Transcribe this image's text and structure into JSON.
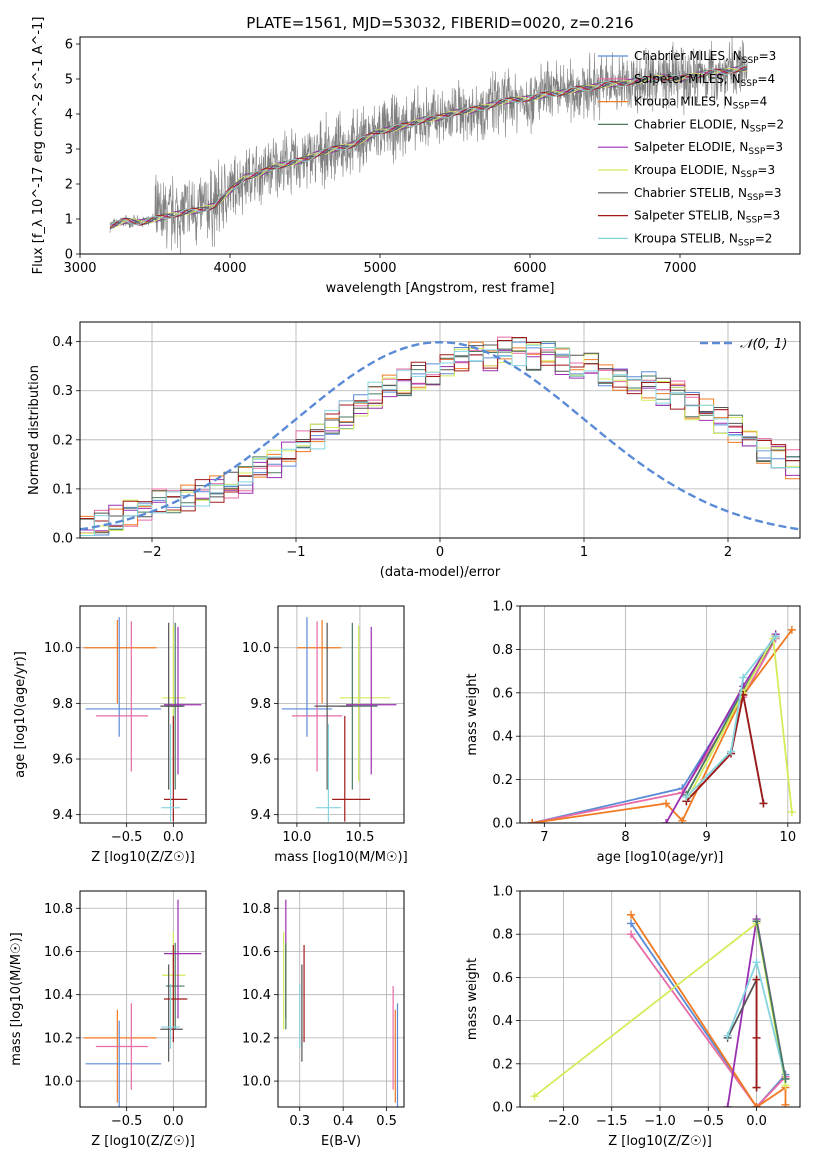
{
  "figure": {
    "title": "PLATE=1561, MJD=53032, FIBERID=0020, z=0.216"
  },
  "colors": {
    "Chabrier MILES": "#5b8bd6",
    "Salpeter MILES": "#e86aa6",
    "Kroupa MILES": "#f07a22",
    "Chabrier ELODIE": "#4a7a60",
    "Salpeter ELODIE": "#9a30b0",
    "Kroupa ELODIE": "#d4ec5a",
    "Chabrier STELIB": "#555555",
    "Salpeter STELIB": "#a01a1a",
    "Kroupa STELIB": "#86d4e0",
    "data": "#808080",
    "normal": "#5b8bd6"
  },
  "legend_spectrum": [
    "Chabrier MILES, N_SSP=3",
    "Salpeter MILES, N_SSP=4",
    "Kroupa MILES, N_SSP=4",
    "Chabrier ELODIE, N_SSP=2",
    "Salpeter ELODIE, N_SSP=3",
    "Kroupa ELODIE, N_SSP=3",
    "Chabrier STELIB, N_SSP=3",
    "Salpeter STELIB, N_SSP=3",
    "Kroupa STELIB, N_SSP=2"
  ],
  "legend_hist": "𝒩(0, 1)",
  "chart_data": [
    {
      "id": "spectrum",
      "type": "line",
      "xlabel": "wavelength [Angstrom, rest frame]",
      "ylabel": "Flux [f_λ 10^-17 erg cm^-2 s^-1 A^-1]",
      "xlim": [
        3000,
        7800
      ],
      "ylim": [
        0,
        6.2
      ],
      "xticks": [
        "3000",
        "4000",
        "5000",
        "6000",
        "7000"
      ],
      "yticks": [
        "0",
        "1",
        "2",
        "3",
        "4",
        "5",
        "6"
      ],
      "data_range": [
        3200,
        7450
      ],
      "model_curve": {
        "x": [
          3200,
          3300,
          3400,
          3500,
          3600,
          3700,
          3800,
          3900,
          4000,
          4100,
          4200,
          4300,
          4400,
          4500,
          4600,
          4700,
          4800,
          4900,
          5000,
          5100,
          5200,
          5300,
          5400,
          5500,
          5600,
          5700,
          5800,
          5900,
          6000,
          6100,
          6200,
          6300,
          6400,
          6500,
          6600,
          6700,
          6800,
          6900,
          7000,
          7100,
          7200,
          7300,
          7400
        ],
        "y": [
          0.8,
          0.95,
          0.9,
          1.0,
          1.1,
          1.2,
          1.25,
          1.4,
          1.8,
          2.2,
          2.3,
          2.5,
          2.6,
          2.7,
          2.9,
          3.0,
          3.1,
          3.3,
          3.5,
          3.6,
          3.7,
          3.85,
          3.9,
          4.05,
          4.1,
          4.2,
          4.35,
          4.4,
          4.45,
          4.55,
          4.6,
          4.7,
          4.75,
          4.85,
          4.85,
          4.95,
          5.0,
          5.05,
          5.0,
          5.1,
          5.2,
          5.2,
          5.3
        ]
      }
    },
    {
      "id": "residual-hist",
      "type": "line",
      "xlabel": "(data-model)/error",
      "ylabel": "Normed distribution",
      "xlim": [
        -2.5,
        2.5
      ],
      "ylim": [
        0,
        0.44
      ],
      "xticks": [
        "−2",
        "−1",
        "0",
        "1",
        "2"
      ],
      "yticks": [
        "0.0",
        "0.1",
        "0.2",
        "0.3",
        "0.4"
      ],
      "bin_width": 0.1,
      "hist_envelope": [
        0.02,
        0.03,
        0.04,
        0.05,
        0.06,
        0.07,
        0.07,
        0.08,
        0.09,
        0.1,
        0.11,
        0.12,
        0.14,
        0.15,
        0.17,
        0.19,
        0.21,
        0.23,
        0.25,
        0.27,
        0.29,
        0.31,
        0.32,
        0.33,
        0.34,
        0.35,
        0.36,
        0.37,
        0.37,
        0.38,
        0.38,
        0.37,
        0.37,
        0.36,
        0.35,
        0.35,
        0.34,
        0.33,
        0.32,
        0.31,
        0.3,
        0.29,
        0.27,
        0.26,
        0.24,
        0.22,
        0.2,
        0.18,
        0.17,
        0.15
      ]
    },
    {
      "id": "age-vs-Z",
      "type": "scatter",
      "xlabel": "Z [log10(Z/Z☉)]",
      "ylabel": "age  [log10(age/yr)]",
      "xlim": [
        -1.0,
        0.35
      ],
      "ylim": [
        9.37,
        10.15
      ],
      "xticks": [
        "−0.5",
        "0.0"
      ],
      "yticks": [
        "9.4",
        "9.6",
        "9.8",
        "10.0"
      ],
      "points": [
        {
          "model": "Kroupa MILES",
          "x": -0.6,
          "xerr": [
            0.36,
            0.42
          ],
          "y": 10.0,
          "yerr": [
            0.2,
            0.1
          ]
        },
        {
          "model": "Chabrier MILES",
          "x": -0.58,
          "xerr": [
            0.36,
            0.45
          ],
          "y": 9.78,
          "yerr": [
            0.1,
            0.33
          ]
        },
        {
          "model": "Salpeter MILES",
          "x": -0.45,
          "xerr": [
            0.38,
            0.18
          ],
          "y": 9.755,
          "yerr": [
            0.2,
            0.34
          ]
        },
        {
          "model": "Kroupa ELODIE",
          "x": 0.0,
          "xerr": [
            0.12,
            0.13
          ],
          "y": 9.82,
          "yerr": [
            0.3,
            0.26
          ]
        },
        {
          "model": "Chabrier ELODIE",
          "x": 0.02,
          "xerr": [
            0.1,
            0.1
          ],
          "y": 9.79,
          "yerr": [
            0.3,
            0.3
          ]
        },
        {
          "model": "Salpeter ELODIE",
          "x": 0.05,
          "xerr": [
            0.15,
            0.25
          ],
          "y": 9.795,
          "yerr": [
            0.25,
            0.28
          ]
        },
        {
          "model": "Chabrier STELIB",
          "x": -0.05,
          "xerr": [
            0.09,
            0.15
          ],
          "y": 9.79,
          "yerr": [
            0.3,
            0.3
          ]
        },
        {
          "model": "Salpeter STELIB",
          "x": 0.0,
          "xerr": [
            0.1,
            0.15
          ],
          "y": 9.455,
          "yerr": [
            0.08,
            0.3
          ]
        },
        {
          "model": "Kroupa STELIB",
          "x": -0.03,
          "xerr": [
            0.1,
            0.1
          ],
          "y": 9.425,
          "yerr": [
            0.05,
            0.3
          ]
        }
      ]
    },
    {
      "id": "age-vs-mass",
      "type": "scatter",
      "xlabel": "mass [log10(M/M☉)]",
      "ylabel": "",
      "xlim": [
        9.85,
        10.85
      ],
      "ylim": [
        9.37,
        10.15
      ],
      "xticks": [
        "10.0",
        "10.5"
      ],
      "yticks": [
        "9.4",
        "9.6",
        "9.8",
        "10.0"
      ],
      "points": [
        {
          "model": "Kroupa MILES",
          "x": 10.2,
          "xerr": [
            0.2,
            0.15
          ],
          "y": 10.0,
          "yerr": [
            0.2,
            0.1
          ]
        },
        {
          "model": "Chabrier MILES",
          "x": 10.08,
          "xerr": [
            0.2,
            0.2
          ],
          "y": 9.78,
          "yerr": [
            0.1,
            0.33
          ]
        },
        {
          "model": "Salpeter MILES",
          "x": 10.16,
          "xerr": [
            0.2,
            0.2
          ],
          "y": 9.755,
          "yerr": [
            0.2,
            0.34
          ]
        },
        {
          "model": "Kroupa ELODIE",
          "x": 10.49,
          "xerr": [
            0.15,
            0.25
          ],
          "y": 9.82,
          "yerr": [
            0.3,
            0.26
          ]
        },
        {
          "model": "Chabrier ELODIE",
          "x": 10.44,
          "xerr": [
            0.1,
            0.2
          ],
          "y": 9.79,
          "yerr": [
            0.3,
            0.3
          ]
        },
        {
          "model": "Salpeter ELODIE",
          "x": 10.59,
          "xerr": [
            0.2,
            0.2
          ],
          "y": 9.795,
          "yerr": [
            0.25,
            0.28
          ]
        },
        {
          "model": "Chabrier STELIB",
          "x": 10.24,
          "xerr": [
            0.1,
            0.2
          ],
          "y": 9.79,
          "yerr": [
            0.3,
            0.3
          ]
        },
        {
          "model": "Salpeter STELIB",
          "x": 10.38,
          "xerr": [
            0.1,
            0.2
          ],
          "y": 9.455,
          "yerr": [
            0.08,
            0.3
          ]
        },
        {
          "model": "Kroupa STELIB",
          "x": 10.25,
          "xerr": [
            0.1,
            0.1
          ],
          "y": 9.425,
          "yerr": [
            0.05,
            0.3
          ]
        }
      ]
    },
    {
      "id": "massweight-vs-age",
      "type": "line",
      "xlabel": "age  [log10(age/yr)]",
      "ylabel": "mass weight",
      "xlim": [
        6.7,
        10.15
      ],
      "ylim": [
        0,
        1.0
      ],
      "xticks": [
        "7",
        "8",
        "9",
        "10"
      ],
      "yticks": [
        "0.0",
        "0.2",
        "0.4",
        "0.6",
        "0.8",
        "1.0"
      ],
      "series": [
        {
          "model": "Chabrier MILES",
          "x": [
            6.85,
            8.7,
            9.45,
            9.85
          ],
          "y": [
            0.0,
            0.16,
            0.61,
            0.86
          ]
        },
        {
          "model": "Salpeter MILES",
          "x": [
            6.85,
            8.7,
            9.45,
            9.85
          ],
          "y": [
            0.0,
            0.14,
            0.58,
            0.85
          ]
        },
        {
          "model": "Kroupa MILES",
          "x": [
            6.85,
            8.5,
            8.7,
            9.45,
            10.05
          ],
          "y": [
            0.0,
            0.09,
            0.01,
            0.59,
            0.89
          ]
        },
        {
          "model": "Chabrier ELODIE",
          "x": [
            8.75,
            9.45,
            9.85
          ],
          "y": [
            0.13,
            0.61,
            0.86
          ]
        },
        {
          "model": "Salpeter ELODIE",
          "x": [
            8.5,
            9.45,
            9.85
          ],
          "y": [
            0.0,
            0.63,
            0.87
          ]
        },
        {
          "model": "Kroupa ELODIE",
          "x": [
            8.75,
            9.45,
            9.82,
            10.05
          ],
          "y": [
            0.1,
            0.6,
            0.85,
            0.05
          ]
        },
        {
          "model": "Chabrier STELIB",
          "x": [
            8.75,
            9.3,
            9.45,
            9.7
          ],
          "y": [
            0.1,
            0.32,
            0.59,
            0.09
          ]
        },
        {
          "model": "Salpeter STELIB",
          "x": [
            8.75,
            9.3,
            9.45,
            9.7
          ],
          "y": [
            0.1,
            0.32,
            0.59,
            0.09
          ]
        },
        {
          "model": "Kroupa STELIB",
          "x": [
            8.75,
            9.3,
            9.45,
            9.85
          ],
          "y": [
            0.12,
            0.33,
            0.67,
            0.86
          ]
        }
      ]
    },
    {
      "id": "mass-vs-Z",
      "type": "scatter",
      "xlabel": "Z [log10(Z/Z☉)]",
      "ylabel": "mass [log10(M/M☉)]",
      "xlim": [
        -1.0,
        0.35
      ],
      "ylim": [
        9.88,
        10.88
      ],
      "xticks": [
        "−0.5",
        "0.0"
      ],
      "yticks": [
        "10.0",
        "10.2",
        "10.4",
        "10.6",
        "10.8"
      ],
      "points": [
        {
          "model": "Kroupa MILES",
          "x": -0.6,
          "xerr": [
            0.36,
            0.42
          ],
          "y": 10.2,
          "yerr": [
            0.3,
            0.13
          ]
        },
        {
          "model": "Chabrier MILES",
          "x": -0.58,
          "xerr": [
            0.36,
            0.45
          ],
          "y": 10.08,
          "yerr": [
            0.2,
            0.2
          ]
        },
        {
          "model": "Salpeter MILES",
          "x": -0.45,
          "xerr": [
            0.38,
            0.18
          ],
          "y": 10.16,
          "yerr": [
            0.2,
            0.2
          ]
        },
        {
          "model": "Kroupa ELODIE",
          "x": 0.0,
          "xerr": [
            0.12,
            0.13
          ],
          "y": 10.49,
          "yerr": [
            0.25,
            0.2
          ]
        },
        {
          "model": "Chabrier ELODIE",
          "x": 0.02,
          "xerr": [
            0.1,
            0.1
          ],
          "y": 10.44,
          "yerr": [
            0.2,
            0.2
          ]
        },
        {
          "model": "Salpeter ELODIE",
          "x": 0.05,
          "xerr": [
            0.15,
            0.25
          ],
          "y": 10.59,
          "yerr": [
            0.3,
            0.25
          ]
        },
        {
          "model": "Chabrier STELIB",
          "x": -0.05,
          "xerr": [
            0.09,
            0.15
          ],
          "y": 10.24,
          "yerr": [
            0.15,
            0.3
          ]
        },
        {
          "model": "Salpeter STELIB",
          "x": 0.0,
          "xerr": [
            0.1,
            0.15
          ],
          "y": 10.38,
          "yerr": [
            0.2,
            0.25
          ]
        },
        {
          "model": "Kroupa STELIB",
          "x": -0.03,
          "xerr": [
            0.1,
            0.1
          ],
          "y": 10.25,
          "yerr": [
            0.1,
            0.2
          ]
        }
      ]
    },
    {
      "id": "mass-vs-EBV",
      "type": "scatter",
      "xlabel": "E(B-V)",
      "ylabel": "",
      "xlim": [
        0.25,
        0.54
      ],
      "ylim": [
        9.88,
        10.88
      ],
      "xticks": [
        "0.3",
        "0.4",
        "0.5"
      ],
      "yticks": [
        "10.0",
        "10.2",
        "10.4",
        "10.6",
        "10.8"
      ],
      "points": [
        {
          "model": "Kroupa ELODIE",
          "x": 0.263,
          "y": 10.49,
          "yerr": [
            0.25,
            0.2
          ]
        },
        {
          "model": "Salpeter ELODIE",
          "x": 0.268,
          "y": 10.59,
          "yerr": [
            0.3,
            0.25
          ]
        },
        {
          "model": "Chabrier ELODIE",
          "x": 0.268,
          "y": 10.44,
          "yerr": [
            0.2,
            0.2
          ]
        },
        {
          "model": "Kroupa STELIB",
          "x": 0.3,
          "y": 10.25,
          "yerr": [
            0.1,
            0.2
          ]
        },
        {
          "model": "Chabrier STELIB",
          "x": 0.305,
          "y": 10.24,
          "yerr": [
            0.15,
            0.3
          ]
        },
        {
          "model": "Salpeter STELIB",
          "x": 0.31,
          "y": 10.38,
          "yerr": [
            0.2,
            0.25
          ]
        },
        {
          "model": "Salpeter MILES",
          "x": 0.515,
          "y": 10.16,
          "yerr": [
            0.2,
            0.28
          ]
        },
        {
          "model": "Kroupa MILES",
          "x": 0.52,
          "y": 10.2,
          "yerr": [
            0.3,
            0.13
          ]
        },
        {
          "model": "Chabrier MILES",
          "x": 0.525,
          "y": 10.08,
          "yerr": [
            0.2,
            0.28
          ]
        }
      ]
    },
    {
      "id": "massweight-vs-Z",
      "type": "line",
      "xlabel": "Z [log10(Z/Z☉)]",
      "ylabel": "mass weight",
      "xlim": [
        -2.45,
        0.45
      ],
      "ylim": [
        0,
        1.0
      ],
      "xticks": [
        "−2.0",
        "−1.5",
        "−1.0",
        "−0.5",
        "0.0"
      ],
      "yticks": [
        "0.0",
        "0.2",
        "0.4",
        "0.6",
        "0.8",
        "1.0"
      ],
      "series": [
        {
          "model": "Chabrier MILES",
          "x": [
            -1.3,
            0.0,
            0.3
          ],
          "y": [
            0.85,
            0.0,
            0.15
          ]
        },
        {
          "model": "Salpeter MILES",
          "x": [
            -1.3,
            0.0,
            0.3
          ],
          "y": [
            0.8,
            0.0,
            0.14
          ]
        },
        {
          "model": "Kroupa MILES",
          "x": [
            -1.3,
            0.0,
            0.3,
            0.3
          ],
          "y": [
            0.89,
            0.0,
            0.09,
            0.01
          ]
        },
        {
          "model": "Salpeter ELODIE",
          "x": [
            -0.3,
            0.0,
            0.3
          ],
          "y": [
            0.0,
            0.87,
            0.13
          ]
        },
        {
          "model": "Kroupa ELODIE",
          "x": [
            -2.3,
            0.0,
            0.3
          ],
          "y": [
            0.05,
            0.85,
            0.1
          ]
        },
        {
          "model": "Chabrier STELIB",
          "x": [
            -0.3,
            0.0,
            0.0
          ],
          "y": [
            0.32,
            0.59,
            0.09
          ]
        },
        {
          "model": "Salpeter STELIB",
          "x": [
            0.0,
            0.0,
            0.0
          ],
          "y": [
            0.32,
            0.59,
            0.09
          ]
        },
        {
          "model": "Kroupa STELIB",
          "x": [
            -0.3,
            0.0,
            0.3
          ],
          "y": [
            0.33,
            0.67,
            0.13
          ]
        },
        {
          "model": "Chabrier ELODIE",
          "x": [
            0.0,
            0.3
          ],
          "y": [
            0.86,
            0.13
          ]
        }
      ]
    }
  ]
}
